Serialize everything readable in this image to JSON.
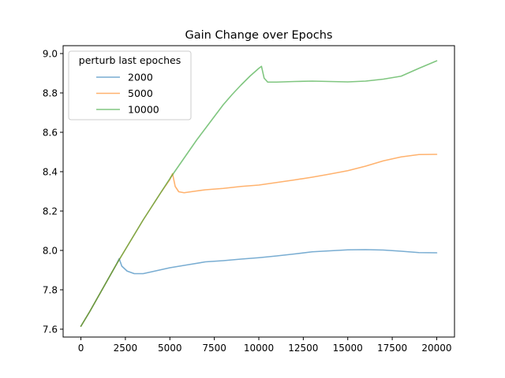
{
  "chart_data": {
    "type": "line",
    "title": "Gain Change over Epochs",
    "xlabel": "",
    "ylabel": "",
    "xlim": [
      -1000,
      21000
    ],
    "ylim": [
      7.56,
      9.04
    ],
    "xticks": [
      0,
      2500,
      5000,
      7500,
      10000,
      12500,
      15000,
      17500,
      20000
    ],
    "yticks": [
      7.6,
      7.8,
      8.0,
      8.2,
      8.4,
      8.6,
      8.8,
      9.0
    ],
    "ytick_labels": [
      "7.6",
      "7.8",
      "8.0",
      "8.2",
      "8.4",
      "8.6",
      "8.8",
      "9.0"
    ],
    "grid": false,
    "legend": {
      "title": "perturb last epoches",
      "location": "top-left"
    },
    "series": [
      {
        "name": "2000",
        "color": "#1f77b4",
        "x": [
          0,
          500,
          1000,
          1500,
          2000,
          2150,
          2300,
          2600,
          3000,
          3500,
          4000,
          5000,
          6000,
          7000,
          8000,
          9000,
          10000,
          11000,
          12000,
          13000,
          14000,
          15000,
          16000,
          17000,
          18000,
          19000,
          20000
        ],
        "y": [
          7.615,
          7.69,
          7.77,
          7.85,
          7.93,
          7.958,
          7.92,
          7.895,
          7.882,
          7.882,
          7.892,
          7.912,
          7.927,
          7.942,
          7.948,
          7.956,
          7.963,
          7.972,
          7.982,
          7.993,
          7.998,
          8.003,
          8.004,
          8.002,
          7.996,
          7.989,
          7.988
        ]
      },
      {
        "name": "5000",
        "color": "#ff7f0e",
        "x": [
          0,
          500,
          1000,
          1500,
          2000,
          2500,
          3000,
          3500,
          4000,
          4500,
          5000,
          5150,
          5300,
          5500,
          5800,
          6500,
          7000,
          8000,
          9000,
          10000,
          11000,
          12000,
          13000,
          14000,
          15000,
          16000,
          17000,
          18000,
          19000,
          20000
        ],
        "y": [
          7.615,
          7.69,
          7.77,
          7.85,
          7.93,
          8.005,
          8.08,
          8.155,
          8.225,
          8.295,
          8.36,
          8.39,
          8.325,
          8.298,
          8.293,
          8.302,
          8.308,
          8.315,
          8.325,
          8.332,
          8.345,
          8.358,
          8.372,
          8.388,
          8.405,
          8.428,
          8.455,
          8.475,
          8.487,
          8.488
        ]
      },
      {
        "name": "10000",
        "color": "#2ca02c",
        "x": [
          0,
          500,
          1000,
          1500,
          2000,
          2500,
          3000,
          3500,
          4000,
          4500,
          5000,
          5500,
          6000,
          6500,
          7000,
          7500,
          8000,
          8500,
          9000,
          9500,
          10000,
          10150,
          10300,
          10500,
          11000,
          12000,
          13000,
          14000,
          15000,
          16000,
          17000,
          18000,
          19000,
          20000
        ],
        "y": [
          7.615,
          7.69,
          7.77,
          7.85,
          7.93,
          8.005,
          8.08,
          8.155,
          8.225,
          8.295,
          8.365,
          8.43,
          8.495,
          8.56,
          8.62,
          8.68,
          8.74,
          8.792,
          8.84,
          8.885,
          8.925,
          8.935,
          8.875,
          8.855,
          8.855,
          8.858,
          8.86,
          8.858,
          8.856,
          8.86,
          8.87,
          8.885,
          8.925,
          8.963
        ]
      }
    ]
  }
}
